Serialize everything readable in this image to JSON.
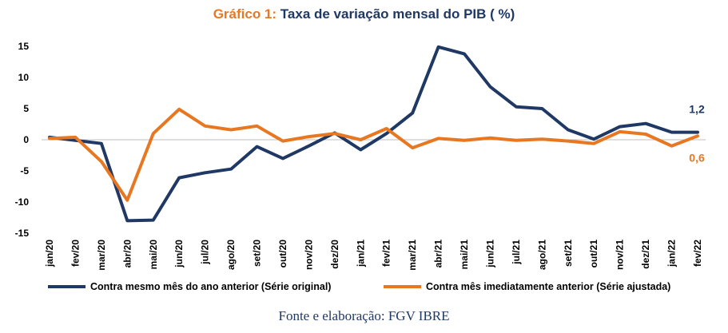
{
  "chart_data": {
    "type": "line",
    "title_prefix": "Gráfico 1:",
    "title_main": "Taxa de variação mensal do PIB ( %)",
    "categories": [
      "jan/20",
      "fev/20",
      "mar/20",
      "abr/20",
      "mai/20",
      "jun/20",
      "jul/20",
      "ago/20",
      "set/20",
      "out/20",
      "nov/20",
      "dez/20",
      "jan/21",
      "fev/21",
      "mar/21",
      "abr/21",
      "mai/21",
      "jun/21",
      "jul/21",
      "ago/21",
      "set/21",
      "out/21",
      "nov/21",
      "dez/21",
      "jan/22",
      "fev/22"
    ],
    "series": [
      {
        "name": "Contra mesmo mês do ano anterior (Série original)",
        "color": "#1f3864",
        "values": [
          0.4,
          -0.1,
          -0.6,
          -13.0,
          -12.9,
          -6.1,
          -5.3,
          -4.7,
          -1.1,
          -3.0,
          -1.0,
          1.1,
          -1.6,
          1.0,
          4.3,
          14.9,
          13.8,
          8.5,
          5.3,
          5.0,
          1.6,
          0.1,
          2.1,
          2.6,
          1.2,
          1.2
        ]
      },
      {
        "name": "Contra mês imediatamente anterior (Série ajustada)",
        "color": "#e87722",
        "values": [
          0.2,
          0.4,
          -3.5,
          -9.7,
          1.0,
          4.9,
          2.2,
          1.6,
          2.2,
          -0.2,
          0.5,
          1.0,
          0.0,
          1.8,
          -1.3,
          0.2,
          -0.1,
          0.3,
          -0.1,
          0.1,
          -0.2,
          -0.6,
          1.3,
          0.9,
          -1.0,
          0.6
        ]
      }
    ],
    "end_labels": [
      "1,2",
      "0,6"
    ],
    "ylim": [
      -15,
      15
    ],
    "yticks": [
      "15",
      "10",
      "5",
      "0",
      "-5",
      "-10",
      "-15"
    ],
    "ytick_values": [
      15,
      10,
      5,
      0,
      -5,
      -10,
      -15
    ],
    "legend_position": "bottom",
    "grid": false,
    "source": "Fonte e elaboração: FGV IBRE"
  }
}
